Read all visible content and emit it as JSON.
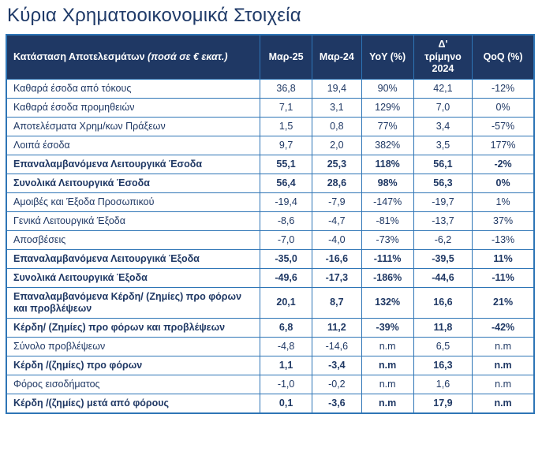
{
  "page_title": "Κύρια Χρηματοοικονομικά Στοιχεία",
  "colors": {
    "header_bg": "#1f3864",
    "table_border": "#2e75b6",
    "body_text": "#1f3864",
    "title_text": "#1f3a68",
    "header_text": "#ffffff"
  },
  "table": {
    "header": {
      "col1_main": "Κατάσταση Αποτελεσμάτων",
      "col1_note": "(ποσά σε € εκατ.)",
      "cols": [
        "Μαρ-25",
        "Μαρ-24",
        "YoY (%)",
        "Δ' τρίμηνο 2024",
        "QoQ (%)"
      ]
    },
    "rows": [
      {
        "label": "Καθαρά έσοδα από τόκους",
        "values": [
          "36,8",
          "19,4",
          "90%",
          "42,1",
          "-12%"
        ],
        "bold": false
      },
      {
        "label": "Καθαρά έσοδα προμηθειών",
        "values": [
          "7,1",
          "3,1",
          "129%",
          "7,0",
          "0%"
        ],
        "bold": false
      },
      {
        "label": "Αποτελέσματα Χρημ/κων Πράξεων",
        "values": [
          "1,5",
          "0,8",
          "77%",
          "3,4",
          "-57%"
        ],
        "bold": false
      },
      {
        "label": "Λοιπά έσοδα",
        "values": [
          "9,7",
          "2,0",
          "382%",
          "3,5",
          "177%"
        ],
        "bold": false
      },
      {
        "label": "Επαναλαμβανόμενα Λειτουργικά Έσοδα",
        "values": [
          "55,1",
          "25,3",
          "118%",
          "56,1",
          "-2%"
        ],
        "bold": true
      },
      {
        "label": "Συνολικά Λειτουργικά Έσοδα",
        "values": [
          "56,4",
          "28,6",
          "98%",
          "56,3",
          "0%"
        ],
        "bold": true
      },
      {
        "label": "Αμοιβές και Έξοδα Προσωπικού",
        "values": [
          "-19,4",
          "-7,9",
          "-147%",
          "-19,7",
          "1%"
        ],
        "bold": false
      },
      {
        "label": "Γενικά Λειτουργικά Έξοδα",
        "values": [
          "-8,6",
          "-4,7",
          "-81%",
          "-13,7",
          "37%"
        ],
        "bold": false
      },
      {
        "label": "Αποσβέσεις",
        "values": [
          "-7,0",
          "-4,0",
          "-73%",
          "-6,2",
          "-13%"
        ],
        "bold": false
      },
      {
        "label": "Επαναλαμβανόμενα Λειτουργικά Έξοδα",
        "values": [
          "-35,0",
          "-16,6",
          "-111%",
          "-39,5",
          "11%"
        ],
        "bold": true
      },
      {
        "label": "Συνολικά Λειτουργικά Έξοδα",
        "values": [
          "-49,6",
          "-17,3",
          "-186%",
          "-44,6",
          "-11%"
        ],
        "bold": true
      },
      {
        "label": "Επαναλαμβανόμενα Κέρδη/ (Ζημίες) προ φόρων και προβλέψεων",
        "values": [
          "20,1",
          "8,7",
          "132%",
          "16,6",
          "21%"
        ],
        "bold": true
      },
      {
        "label": "Κέρδη/ (Ζημίες) προ φόρων και προβλέψεων",
        "values": [
          "6,8",
          "11,2",
          "-39%",
          "11,8",
          "-42%"
        ],
        "bold": true
      },
      {
        "label": "Σύνολο προβλέψεων",
        "values": [
          "-4,8",
          "-14,6",
          "n.m",
          "6,5",
          "n.m"
        ],
        "bold": false
      },
      {
        "label": "Κέρδη /(ζημίες) προ φόρων",
        "values": [
          "1,1",
          "-3,4",
          "n.m",
          "16,3",
          "n.m"
        ],
        "bold": true
      },
      {
        "label": "Φόρος εισοδήματος",
        "values": [
          "-1,0",
          "-0,2",
          "n.m",
          "1,6",
          "n.m"
        ],
        "bold": false
      },
      {
        "label": "Κέρδη /(ζημίες) μετά από φόρους",
        "values": [
          "0,1",
          "-3,6",
          "n.m",
          "17,9",
          "n.m"
        ],
        "bold": true
      }
    ]
  }
}
